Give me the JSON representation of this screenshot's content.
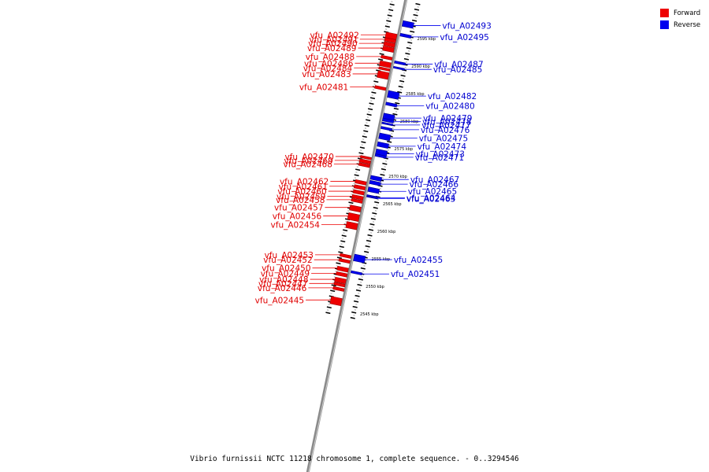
{
  "caption": "Vibrio furnissii NCTC 11218 chromosome 1, complete sequence. - 0..3294546",
  "legend": {
    "forward": {
      "label": "Forward",
      "color": "#ee0000"
    },
    "reverse": {
      "label": "Reverse",
      "color": "#0000ee"
    }
  },
  "forward_genes": [
    {
      "id": "vfu_A02492",
      "pos": 2595.0,
      "len": 1.0
    },
    {
      "id": "vfu_A02491",
      "pos": 2594.0,
      "len": 0.6
    },
    {
      "id": "vfu_A02490",
      "pos": 2593.3,
      "len": 0.7
    },
    {
      "id": "vfu_A02489",
      "pos": 2592.5,
      "len": 0.8
    },
    {
      "id": "vfu_A02488",
      "pos": 2590.8,
      "len": 0.5
    },
    {
      "id": "vfu_A02486",
      "pos": 2589.8,
      "len": 0.9
    },
    {
      "id": "vfu_A02484",
      "pos": 2588.7,
      "len": 0.4
    },
    {
      "id": "vfu_A02483",
      "pos": 2588.0,
      "len": 1.2
    },
    {
      "id": "vfu_A02481",
      "pos": 2585.3,
      "len": 0.5
    },
    {
      "id": "vfu_A02470",
      "pos": 2572.6,
      "len": 0.4
    },
    {
      "id": "vfu_A02469",
      "pos": 2572.0,
      "len": 0.6
    },
    {
      "id": "vfu_A02468",
      "pos": 2571.3,
      "len": 0.5
    },
    {
      "id": "vfu_A02462",
      "pos": 2568.2,
      "len": 0.6
    },
    {
      "id": "vfu_A02461",
      "pos": 2567.3,
      "len": 0.6
    },
    {
      "id": "vfu_A02460",
      "pos": 2566.4,
      "len": 0.6
    },
    {
      "id": "vfu_A02459",
      "pos": 2565.5,
      "len": 0.6
    },
    {
      "id": "vfu_A02458",
      "pos": 2564.8,
      "len": 0.5
    },
    {
      "id": "vfu_A02457",
      "pos": 2563.6,
      "len": 0.9
    },
    {
      "id": "vfu_A02456",
      "pos": 2562.2,
      "len": 1.2
    },
    {
      "id": "vfu_A02454",
      "pos": 2560.6,
      "len": 1.1
    },
    {
      "id": "vfu_A02453",
      "pos": 2554.8,
      "len": 0.5
    },
    {
      "id": "vfu_A02452",
      "pos": 2553.9,
      "len": 0.5
    },
    {
      "id": "vfu_A02450",
      "pos": 2552.5,
      "len": 0.7
    },
    {
      "id": "vfu_A02449",
      "pos": 2551.5,
      "len": 0.6
    },
    {
      "id": "vfu_A02448",
      "pos": 2550.5,
      "len": 0.8
    },
    {
      "id": "vfu_A02447",
      "pos": 2549.6,
      "len": 0.5
    },
    {
      "id": "vfu_A02446",
      "pos": 2548.8,
      "len": 0.5
    },
    {
      "id": "vfu_A02445",
      "pos": 2547.0,
      "len": 1.3
    }
  ],
  "reverse_genes": [
    {
      "id": "vfu_A02495",
      "pos": 2595.3,
      "len": 0.5
    },
    {
      "id": "vfu_A02493",
      "pos": 2597.6,
      "len": 1.0
    },
    {
      "id": "vfu_A02487",
      "pos": 2590.3,
      "len": 0.4
    },
    {
      "id": "vfu_A02485",
      "pos": 2589.3,
      "len": 0.3
    },
    {
      "id": "vfu_A02482",
      "pos": 2584.9,
      "len": 1.2
    },
    {
      "id": "vfu_A02480",
      "pos": 2582.8,
      "len": 0.5
    },
    {
      "id": "vfu_A02479",
      "pos": 2580.8,
      "len": 1.0
    },
    {
      "id": "vfu_A02478",
      "pos": 2579.9,
      "len": 0.5
    },
    {
      "id": "vfu_A02477",
      "pos": 2579.2,
      "len": 0.3
    },
    {
      "id": "vfu_A02476",
      "pos": 2578.4,
      "len": 0.4
    },
    {
      "id": "vfu_A02475",
      "pos": 2577.2,
      "len": 1.0
    },
    {
      "id": "vfu_A02474",
      "pos": 2575.6,
      "len": 0.8
    },
    {
      "id": "vfu_A02473",
      "pos": 2574.3,
      "len": 1.0
    },
    {
      "id": "vfu_A02471",
      "pos": 2573.4,
      "len": 0.4
    },
    {
      "id": "vfu_A02467",
      "pos": 2569.5,
      "len": 0.7
    },
    {
      "id": "vfu_A02466",
      "pos": 2568.6,
      "len": 0.6
    },
    {
      "id": "vfu_A02465",
      "pos": 2567.4,
      "len": 0.8
    },
    {
      "id": "vfu_A02464",
      "pos": 2566.0,
      "len": 0.3
    },
    {
      "id": "vfu_A02463",
      "pos": 2565.8,
      "len": 0.2
    },
    {
      "id": "vfu_A02455",
      "pos": 2555.2,
      "len": 1.2
    },
    {
      "id": "vfu_A02451",
      "pos": 2552.2,
      "len": 0.4
    }
  ],
  "kbp_labels": [
    "2595 kbp",
    "2590 kbp",
    "2585 kbp",
    "2580 kbp",
    "2575 kbp",
    "2570 kbp",
    "2565 kbp",
    "2560 kbp",
    "2555 kbp",
    "2550 kbp",
    "2545 kbp"
  ]
}
